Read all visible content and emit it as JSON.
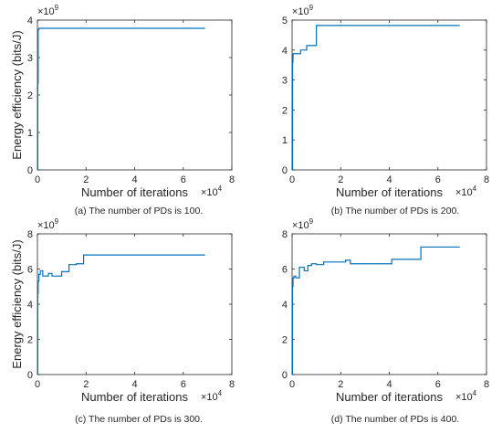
{
  "chart_data": [
    {
      "type": "line",
      "caption": "(a) The number of PDs is 100.",
      "xlabel": "Number of iterations",
      "ylabel": "Energy efficiency (bits/J)",
      "x_multiplier": {
        "base": "×10",
        "exp": "4"
      },
      "y_multiplier": {
        "base": "×10",
        "exp": "9"
      },
      "xlim": [
        0,
        80000
      ],
      "ylim": [
        0,
        4000000000
      ],
      "xticks": [
        0,
        20000,
        40000,
        60000,
        80000
      ],
      "xtick_labels": [
        "0",
        "2",
        "4",
        "6",
        "8"
      ],
      "yticks": [
        0,
        1000000000,
        2000000000,
        3000000000,
        4000000000
      ],
      "ytick_labels": [
        "0",
        "1",
        "2",
        "3",
        "4"
      ],
      "grid": false,
      "color": "#0072BD",
      "series": [
        {
          "x": [
            0,
            150,
            150,
            300,
            300,
            600,
            600,
            69000
          ],
          "y": [
            0,
            0,
            2300000000,
            2300000000,
            3750000000,
            3750000000,
            3780000000,
            3780000000
          ]
        }
      ]
    },
    {
      "type": "line",
      "caption": "(b) The number of PDs is 200.",
      "xlabel": "Number of iterations",
      "ylabel": "",
      "x_multiplier": {
        "base": "×10",
        "exp": "4"
      },
      "y_multiplier": {
        "base": "×10",
        "exp": "9"
      },
      "xlim": [
        0,
        80000
      ],
      "ylim": [
        0,
        5000000000
      ],
      "xticks": [
        0,
        20000,
        40000,
        60000,
        80000
      ],
      "xtick_labels": [
        "0",
        "2",
        "4",
        "6",
        "8"
      ],
      "yticks": [
        0,
        1000000000,
        2000000000,
        3000000000,
        4000000000,
        5000000000
      ],
      "ytick_labels": [
        "0",
        "1",
        "2",
        "3",
        "4",
        "5"
      ],
      "grid": false,
      "color": "#0072BD",
      "series": [
        {
          "x": [
            0,
            200,
            200,
            400,
            400,
            3500,
            3500,
            6000,
            6000,
            10000,
            10000,
            69000
          ],
          "y": [
            0,
            0,
            3600000000,
            3600000000,
            3880000000,
            3880000000,
            4000000000,
            4000000000,
            4150000000,
            4150000000,
            4820000000,
            4820000000
          ]
        }
      ]
    },
    {
      "type": "line",
      "caption": "(c) The number of PDs is 300.",
      "xlabel": "Number of iterations",
      "ylabel": "Energy efficiency (bits/J)",
      "x_multiplier": {
        "base": "×10",
        "exp": "4"
      },
      "y_multiplier": {
        "base": "×10",
        "exp": "9"
      },
      "xlim": [
        0,
        80000
      ],
      "ylim": [
        0,
        8000000000
      ],
      "xticks": [
        0,
        20000,
        40000,
        60000,
        80000
      ],
      "xtick_labels": [
        "0",
        "2",
        "4",
        "6",
        "8"
      ],
      "yticks": [
        0,
        2000000000,
        4000000000,
        6000000000,
        8000000000
      ],
      "ytick_labels": [
        "0",
        "2",
        "4",
        "6",
        "8"
      ],
      "grid": false,
      "color": "#0072BD",
      "series": [
        {
          "x": [
            0,
            150,
            150,
            300,
            300,
            600,
            600,
            1200,
            1200,
            2200,
            2200,
            4500,
            4500,
            6000,
            6000,
            10000,
            10000,
            13000,
            13000,
            16000,
            16000,
            19000,
            19000,
            69000
          ],
          "y": [
            0,
            0,
            4600000000,
            4600000000,
            5300000000,
            5300000000,
            5700000000,
            5700000000,
            5900000000,
            5900000000,
            5600000000,
            5600000000,
            5750000000,
            5750000000,
            5600000000,
            5600000000,
            5850000000,
            5850000000,
            6250000000,
            6250000000,
            6300000000,
            6300000000,
            6800000000,
            6800000000
          ]
        }
      ]
    },
    {
      "type": "line",
      "caption": "(d) The number of PDs is 400.",
      "xlabel": "Number of iterations",
      "ylabel": "",
      "x_multiplier": {
        "base": "×10",
        "exp": "4"
      },
      "y_multiplier": {
        "base": "×10",
        "exp": "9"
      },
      "xlim": [
        0,
        80000
      ],
      "ylim": [
        0,
        8000000000
      ],
      "xticks": [
        0,
        20000,
        40000,
        60000,
        80000
      ],
      "xtick_labels": [
        "0",
        "2",
        "4",
        "6",
        "8"
      ],
      "yticks": [
        0,
        2000000000,
        4000000000,
        6000000000,
        8000000000
      ],
      "ytick_labels": [
        "0",
        "2",
        "4",
        "6",
        "8"
      ],
      "grid": false,
      "color": "#0072BD",
      "series": [
        {
          "x": [
            0,
            150,
            150,
            400,
            400,
            800,
            800,
            1500,
            1500,
            3000,
            3000,
            5000,
            5000,
            6500,
            6500,
            8000,
            8000,
            10000,
            10000,
            13000,
            13000,
            22000,
            22000,
            24000,
            24000,
            41000,
            41000,
            53000,
            53000,
            69000
          ],
          "y": [
            0,
            0,
            5000000000,
            5000000000,
            5500000000,
            5500000000,
            5600000000,
            5600000000,
            5500000000,
            5500000000,
            6100000000,
            6100000000,
            5900000000,
            5900000000,
            6200000000,
            6200000000,
            6300000000,
            6300000000,
            6250000000,
            6250000000,
            6400000000,
            6400000000,
            6500000000,
            6500000000,
            6300000000,
            6300000000,
            6550000000,
            6550000000,
            7250000000,
            7250000000
          ]
        }
      ]
    }
  ]
}
